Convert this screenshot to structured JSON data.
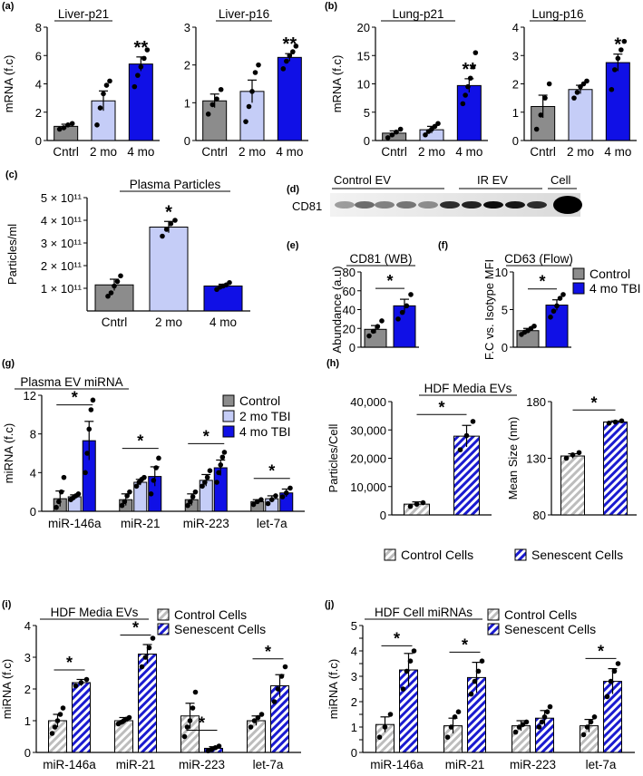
{
  "colors": {
    "control": "#8c8c8c",
    "mo2": "#c5cdf7",
    "mo4": "#1010e6",
    "hatch_control": "#bdbdbd",
    "hatch_senescent": "#1a1ad0",
    "dot": "#000000"
  },
  "panel_labels": [
    "(a)",
    "(b)",
    "(c)",
    "(d)",
    "(e)",
    "(f)",
    "(g)",
    "(h)",
    "(i)",
    "(j)"
  ],
  "western": {
    "protein": "CD81",
    "groups": [
      "Control EV",
      "IR EV",
      "Cell"
    ]
  },
  "legends": {
    "ef": [
      "Control",
      "4 mo TBI"
    ],
    "g": [
      "Control",
      "2 mo TBI",
      "4 mo TBI"
    ],
    "h": [
      "Control Cells",
      "Senescent Cells"
    ],
    "i": [
      "Control Cells",
      "Senescent Cells"
    ],
    "j": [
      "Control Cells",
      "Senescent Cells"
    ]
  },
  "chart_data": [
    {
      "id": "a1",
      "type": "bar",
      "title": "Liver-p21",
      "ylabel": "mRNA (f.c)",
      "categories": [
        "Cntrl",
        "2 mo",
        "4 mo"
      ],
      "values": [
        1.0,
        2.8,
        5.4
      ],
      "errors": [
        0.15,
        0.7,
        0.5
      ],
      "ylim": [
        0,
        8
      ],
      "yticks": [
        0,
        2,
        4,
        6,
        8
      ],
      "significance": [
        "",
        "",
        "**"
      ],
      "points": [
        [
          0.8,
          0.9,
          1.1,
          1.2
        ],
        [
          1.1,
          2.3,
          3.3,
          3.9,
          4.2
        ],
        [
          3.8,
          4.6,
          5.2,
          5.8,
          6.4
        ]
      ]
    },
    {
      "id": "a2",
      "type": "bar",
      "title": "Liver-p16",
      "ylabel": "",
      "categories": [
        "Cntrl",
        "2 mo",
        "4 mo"
      ],
      "values": [
        1.05,
        1.3,
        2.2
      ],
      "errors": [
        0.18,
        0.3,
        0.1
      ],
      "ylim": [
        0,
        3
      ],
      "yticks": [
        0,
        1,
        2,
        3
      ],
      "significance": [
        "",
        "",
        "**"
      ],
      "points": [
        [
          0.7,
          0.95,
          1.1,
          1.35
        ],
        [
          0.5,
          0.9,
          1.3,
          1.8,
          2.0
        ],
        [
          1.9,
          2.1,
          2.25,
          2.35,
          2.5
        ]
      ]
    },
    {
      "id": "b1",
      "type": "bar",
      "title": "Lung-p21",
      "ylabel": "mRNA (f.c)",
      "categories": [
        "Cntrl",
        "2 mo",
        "4 mo"
      ],
      "values": [
        1.3,
        1.9,
        9.7
      ],
      "errors": [
        0.4,
        0.6,
        1.2
      ],
      "ylim": [
        0,
        20
      ],
      "yticks": [
        0,
        5,
        10,
        15,
        20
      ],
      "significance": [
        "",
        "",
        "**"
      ],
      "points": [
        [
          0.5,
          1.0,
          1.5,
          2.0
        ],
        [
          1.0,
          1.6,
          2.0,
          2.5,
          3.0
        ],
        [
          6.5,
          8.0,
          9.5,
          11.0,
          13.0,
          15.5
        ]
      ]
    },
    {
      "id": "b2",
      "type": "bar",
      "title": "Lung-p16",
      "ylabel": "",
      "categories": [
        "Cntrl",
        "2 mo",
        "4 mo"
      ],
      "values": [
        1.2,
        1.8,
        2.75
      ],
      "errors": [
        0.4,
        0.15,
        0.3
      ],
      "ylim": [
        0,
        4
      ],
      "yticks": [
        0,
        1,
        2,
        3,
        4
      ],
      "significance": [
        "",
        "",
        "*"
      ],
      "points": [
        [
          0.4,
          0.9,
          1.5,
          2.0
        ],
        [
          1.5,
          1.7,
          1.9,
          2.0,
          2.1
        ],
        [
          1.8,
          2.5,
          2.9,
          3.2,
          3.5
        ]
      ]
    },
    {
      "id": "c",
      "type": "bar",
      "title": "Plasma Particles",
      "ylabel": "Particles/ml",
      "categories": [
        "Cntrl",
        "2 mo",
        "4 mo"
      ],
      "values": [
        1.15,
        3.7,
        1.1
      ],
      "errors": [
        0.25,
        0.25,
        0.08
      ],
      "ylim": [
        0,
        5
      ],
      "yticks": [
        1,
        2,
        3,
        4,
        5
      ],
      "yticklabels": [
        "1 × 10¹¹",
        "2 × 10¹¹",
        "3 × 10¹¹",
        "4 × 10¹¹",
        "5 × 10¹¹"
      ],
      "significance": [
        "",
        "*",
        ""
      ],
      "points": [
        [
          0.65,
          0.8,
          1.1,
          1.3,
          1.55
        ],
        [
          3.3,
          3.6,
          3.85,
          4.0
        ],
        [
          0.95,
          1.05,
          1.1,
          1.15,
          1.25
        ]
      ]
    },
    {
      "id": "e",
      "type": "bar",
      "title": "CD81 (WB)",
      "ylabel": "Abundance (a.u)",
      "categories": [
        "Control",
        "4 mo TBI"
      ],
      "values": [
        19,
        44
      ],
      "errors": [
        4,
        7
      ],
      "ylim": [
        0,
        80
      ],
      "yticks": [
        0,
        20,
        40,
        60,
        80
      ],
      "bracket": "*",
      "points": [
        [
          12,
          17,
          22,
          28
        ],
        [
          30,
          37,
          44,
          56
        ]
      ]
    },
    {
      "id": "f",
      "type": "bar",
      "title": "CD63 (Flow)",
      "ylabel": "F.C vs. Isotype MFI",
      "categories": [
        "Control",
        "4 mo TBI"
      ],
      "values": [
        2.2,
        5.6
      ],
      "errors": [
        0.3,
        0.7
      ],
      "ylim": [
        0,
        10
      ],
      "yticks": [
        0,
        5,
        10
      ],
      "bracket": "*",
      "points": [
        [
          1.7,
          2.0,
          2.2,
          2.5,
          2.8
        ],
        [
          4.0,
          4.8,
          5.5,
          6.5,
          7.0
        ]
      ]
    },
    {
      "id": "g",
      "type": "bar",
      "title": "Plasma EV miRNA",
      "ylabel": "miRNA (f.c)",
      "categories": [
        "miR-146a",
        "miR-21",
        "miR-223",
        "let-7a"
      ],
      "series": [
        {
          "name": "Control",
          "values": [
            1.3,
            1.2,
            1.2,
            1.0
          ],
          "errors": [
            0.8,
            0.6,
            0.6,
            0.2
          ]
        },
        {
          "name": "2 mo TBI",
          "values": [
            1.5,
            3.0,
            3.2,
            1.3
          ],
          "errors": [
            0.2,
            0.3,
            0.6,
            0.3
          ]
        },
        {
          "name": "4 mo TBI",
          "values": [
            7.3,
            3.6,
            4.5,
            1.9
          ],
          "errors": [
            2.0,
            1.0,
            0.8,
            0.4
          ]
        }
      ],
      "ylim": [
        0,
        12
      ],
      "yticks": [
        0,
        4,
        8,
        12
      ],
      "brackets": [
        {
          "cat": 0,
          "label": "*",
          "y": 11.0
        },
        {
          "cat": 1,
          "label": "*",
          "y": 6.5
        },
        {
          "cat": 2,
          "label": "*",
          "y": 7.0
        },
        {
          "cat": 3,
          "label": "*",
          "y": 3.4
        }
      ],
      "points": [
        [
          [
            0.4,
            1.0,
            2.0,
            3.5
          ],
          [
            1.2,
            1.4,
            1.6,
            1.8
          ],
          [
            4.0,
            6.0,
            8.5,
            10.5,
            11.5
          ]
        ],
        [
          [
            0.6,
            1.0,
            1.6,
            2.0
          ],
          [
            2.6,
            3.0,
            3.3,
            3.5
          ],
          [
            1.8,
            3.2,
            4.5,
            5.5
          ]
        ],
        [
          [
            0.6,
            1.0,
            1.5,
            2.0
          ],
          [
            2.6,
            3.0,
            3.5,
            4.2
          ],
          [
            3.0,
            4.0,
            4.8,
            5.6,
            6.1
          ]
        ],
        [
          [
            0.7,
            1.0,
            1.2
          ],
          [
            0.8,
            1.2,
            1.6
          ],
          [
            1.5,
            1.9,
            2.4
          ]
        ]
      ]
    },
    {
      "id": "h1",
      "type": "bar",
      "title": "HDF Media EVs",
      "ylabel": "Particles/Cell",
      "categories": [
        "Control Cells",
        "Senescent Cells"
      ],
      "values": [
        3800,
        27800
      ],
      "errors": [
        800,
        3800
      ],
      "ylim": [
        0,
        40000
      ],
      "yticks": [
        0,
        10000,
        20000,
        30000,
        40000
      ],
      "yticklabels": [
        "0",
        "10,000",
        "20,000",
        "30,000",
        "40,000"
      ],
      "bracket": "*",
      "points": [
        [
          3000,
          3800,
          4300
        ],
        [
          23000,
          28000,
          33000
        ]
      ]
    },
    {
      "id": "h2",
      "type": "bar",
      "title": "",
      "ylabel": "Mean Size (nm)",
      "categories": [
        "Control Cells",
        "Senescent Cells"
      ],
      "values": [
        132,
        162
      ],
      "errors": [
        2,
        1
      ],
      "ylim": [
        80,
        180
      ],
      "yticks": [
        80,
        130,
        180
      ],
      "bracket": "*",
      "points": [
        [
          130,
          133,
          135
        ],
        [
          161,
          162,
          163
        ]
      ]
    },
    {
      "id": "i",
      "type": "bar",
      "title": "HDF Media EVs",
      "ylabel": "miRNA (f.c)",
      "categories": [
        "miR-146a",
        "miR-21",
        "miR-223",
        "let-7a"
      ],
      "series": [
        {
          "name": "Control Cells",
          "values": [
            1.0,
            1.0,
            1.15,
            1.0
          ],
          "errors": [
            0.2,
            0.1,
            0.4,
            0.15
          ]
        },
        {
          "name": "Senescent Cells",
          "values": [
            2.2,
            3.1,
            0.13,
            2.1
          ],
          "errors": [
            0.1,
            0.3,
            0.05,
            0.35
          ]
        }
      ],
      "ylim": [
        0,
        4
      ],
      "yticks": [
        0,
        1,
        2,
        3,
        4
      ],
      "brackets": [
        {
          "cat": 0,
          "label": "*",
          "y": 2.6
        },
        {
          "cat": 1,
          "label": "*",
          "y": 3.7
        },
        {
          "cat": 2,
          "label": "*",
          "y": 0.7
        },
        {
          "cat": 3,
          "label": "*",
          "y": 2.95
        }
      ],
      "points": [
        [
          [
            0.6,
            0.8,
            1.0,
            1.2,
            1.4
          ],
          [
            2.1,
            2.2,
            2.3
          ]
        ],
        [
          [
            0.9,
            0.95,
            1.0,
            1.05,
            1.1
          ],
          [
            2.7,
            3.0,
            3.3,
            3.6
          ]
        ],
        [
          [
            0.5,
            0.8,
            1.0,
            1.4,
            1.9
          ],
          [
            0.05,
            0.1,
            0.15,
            0.2
          ]
        ],
        [
          [
            0.8,
            1.0,
            1.1,
            1.2
          ],
          [
            1.6,
            2.0,
            2.4,
            2.7
          ]
        ]
      ]
    },
    {
      "id": "j",
      "type": "bar",
      "title": "HDF Cell miRNAs",
      "ylabel": "miRNA (f.c)",
      "categories": [
        "miR-146a",
        "miR-21",
        "miR-223",
        "let-7a"
      ],
      "series": [
        {
          "name": "Control Cells",
          "values": [
            1.1,
            1.05,
            1.05,
            1.05
          ],
          "errors": [
            0.3,
            0.3,
            0.2,
            0.25
          ]
        },
        {
          "name": "Senescent Cells",
          "values": [
            3.25,
            2.95,
            1.35,
            2.8
          ],
          "errors": [
            0.65,
            0.6,
            0.3,
            0.5
          ]
        }
      ],
      "ylim": [
        0,
        5
      ],
      "yticks": [
        0,
        0.5,
        1,
        1.5,
        2,
        2.5,
        3,
        3.5,
        4,
        4.5,
        5
      ],
      "yticklabels": [
        "0",
        "",
        "1",
        "",
        "2",
        "",
        "3",
        "",
        "4",
        "",
        "5"
      ],
      "brackets": [
        {
          "cat": 0,
          "label": "*",
          "y": 4.2
        },
        {
          "cat": 1,
          "label": "*",
          "y": 3.95
        },
        {
          "cat": 3,
          "label": "*",
          "y": 3.7
        }
      ],
      "points": [
        [
          [
            0.6,
            1.0,
            1.5
          ],
          [
            2.5,
            3.2,
            3.6,
            4.0
          ]
        ],
        [
          [
            0.6,
            1.0,
            1.4,
            1.6
          ],
          [
            2.3,
            2.8,
            3.2,
            3.6
          ]
        ],
        [
          [
            0.8,
            1.0,
            1.1,
            1.2
          ],
          [
            1.0,
            1.2,
            1.4,
            1.6,
            1.8
          ]
        ],
        [
          [
            0.7,
            1.0,
            1.2,
            1.4
          ],
          [
            2.2,
            2.8,
            3.2,
            3.5
          ]
        ]
      ]
    }
  ]
}
